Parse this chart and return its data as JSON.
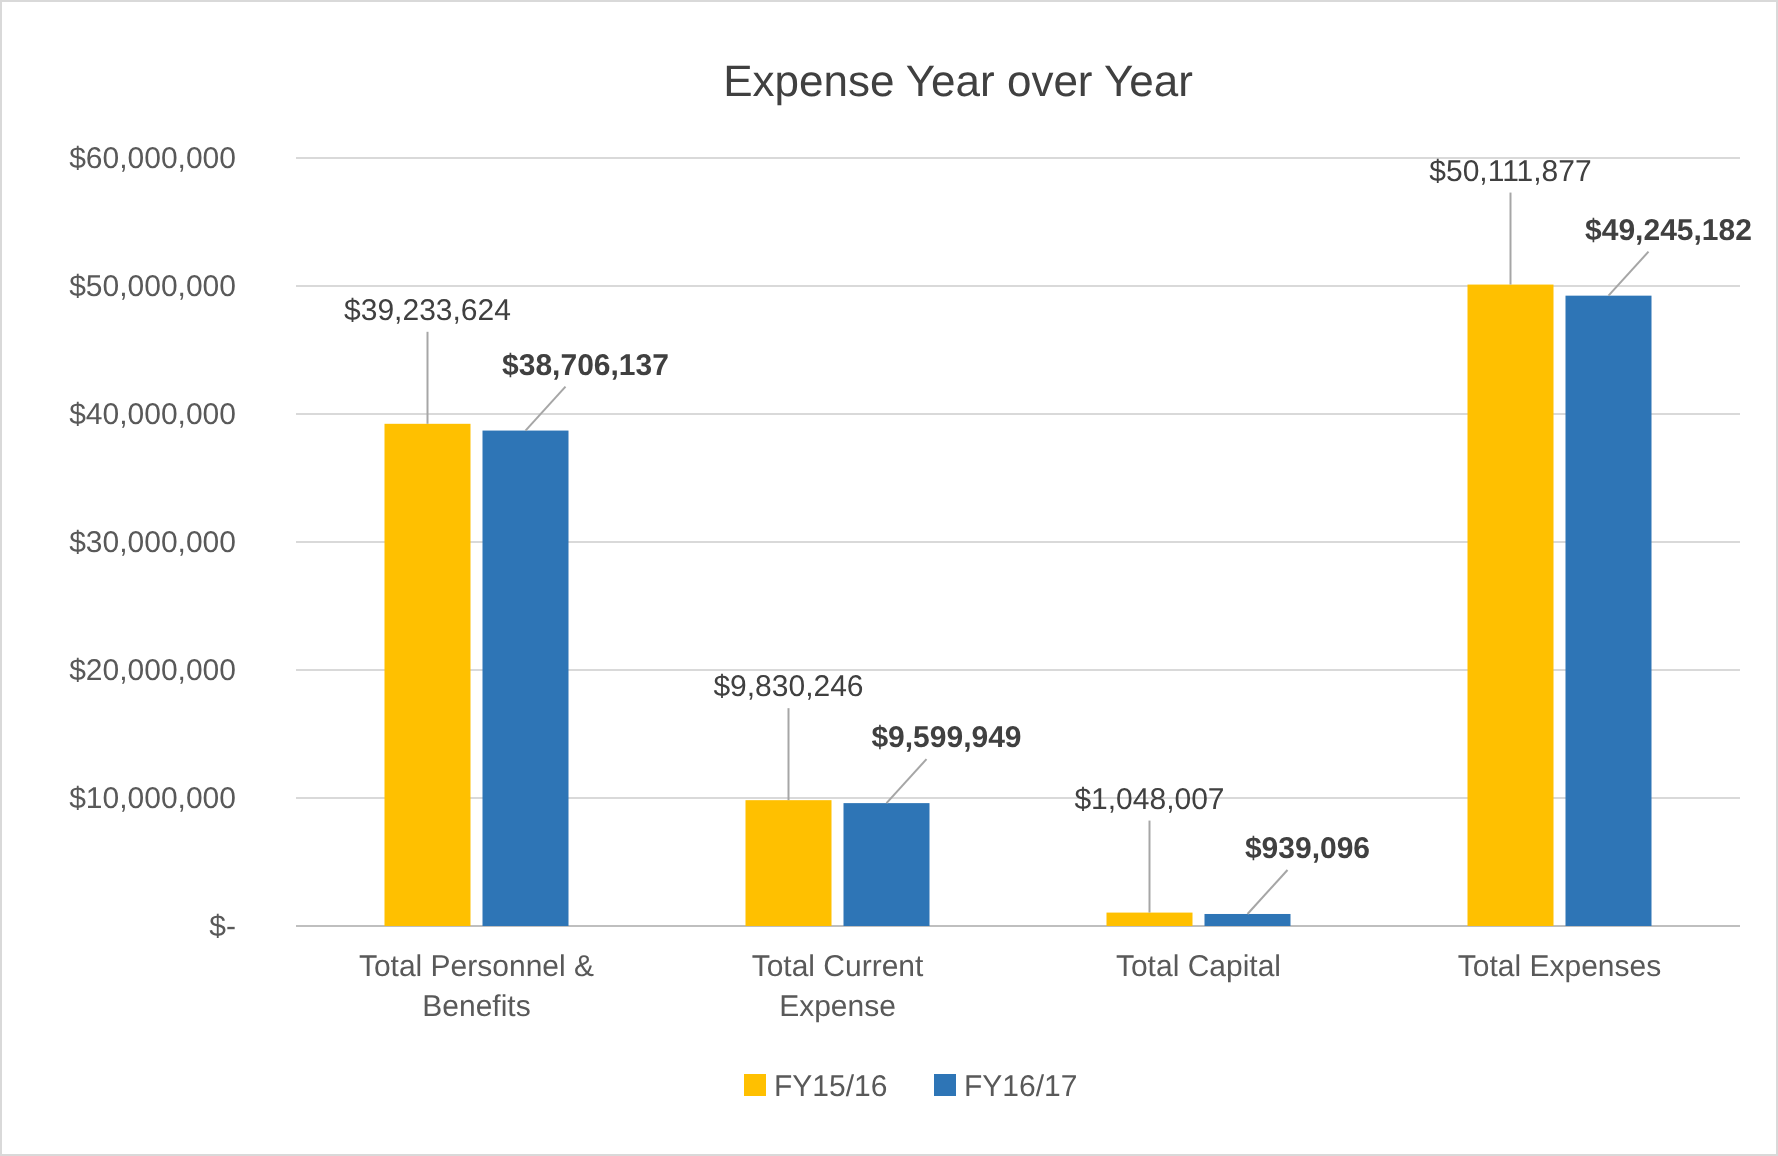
{
  "chart_data": {
    "type": "bar",
    "title": "Expense Year over Year",
    "categories": [
      "Total Personnel & Benefits",
      "Total Current Expense",
      "Total Capital",
      "Total Expenses"
    ],
    "series": [
      {
        "name": "FY15/16",
        "color": "#ffc000",
        "values": [
          39233624,
          9830246,
          1048007,
          50111877
        ],
        "value_labels": [
          "$39,233,624",
          "$9,830,246",
          "$1,048,007",
          "$50,111,877"
        ]
      },
      {
        "name": "FY16/17",
        "color": "#2e75b6",
        "values": [
          38706137,
          9599949,
          939096,
          49245182
        ],
        "value_labels": [
          "$38,706,137",
          "$9,599,949",
          "$939,096",
          "$49,245,182"
        ]
      }
    ],
    "ylim": [
      0,
      60000000
    ],
    "yticks": [
      {
        "value": 0,
        "label": "$-"
      },
      {
        "value": 10000000,
        "label": "$10,000,000"
      },
      {
        "value": 20000000,
        "label": "$20,000,000"
      },
      {
        "value": 30000000,
        "label": "$30,000,000"
      },
      {
        "value": 40000000,
        "label": "$40,000,000"
      },
      {
        "value": 50000000,
        "label": "$50,000,000"
      },
      {
        "value": 60000000,
        "label": "$60,000,000"
      }
    ],
    "grid": "y",
    "legend": "bottom"
  }
}
